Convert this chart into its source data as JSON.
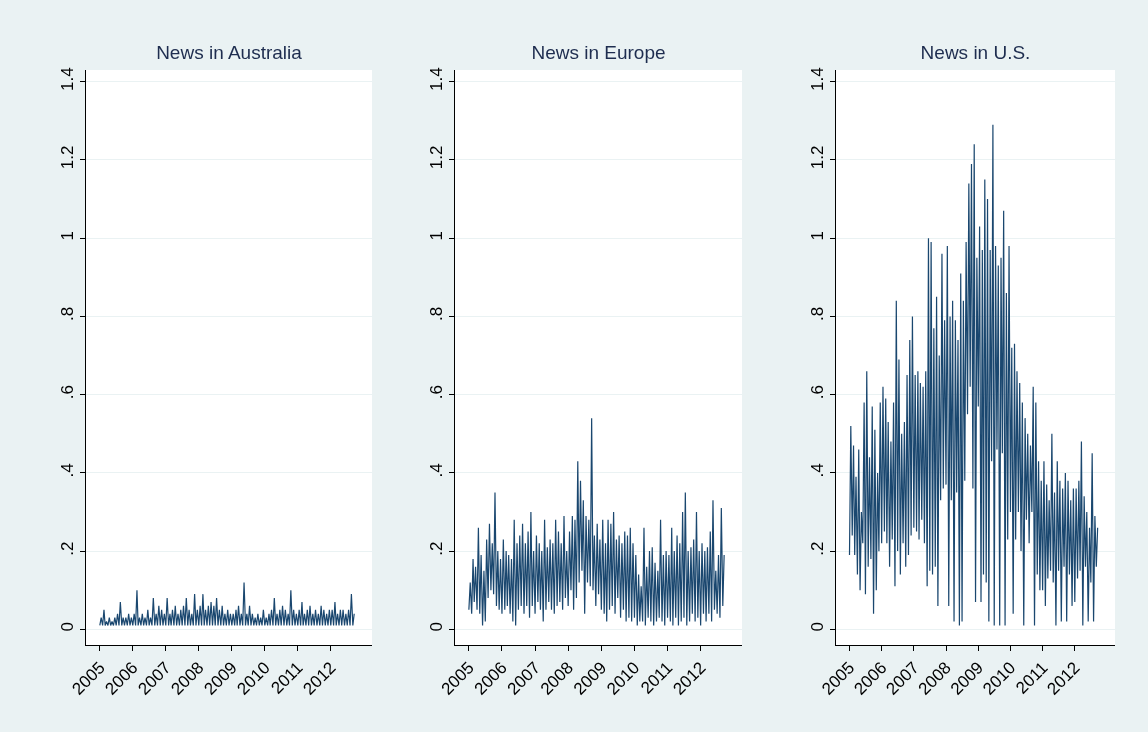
{
  "chart_data": [
    {
      "type": "line",
      "title": "News in Australia",
      "xlim": [
        "2004-08",
        "2013-04"
      ],
      "ylim": [
        -0.04,
        1.43
      ],
      "xticks": [
        "2005",
        "2006",
        "2007",
        "2008",
        "2009",
        "2010",
        "2011",
        "2012"
      ],
      "yticks": [
        0,
        {
          "value": 0.2,
          "label": ".2"
        },
        {
          "value": 0.4,
          "label": ".4"
        },
        {
          "value": 0.6,
          "label": ".6"
        },
        {
          "value": 0.8,
          "label": ".8"
        },
        1,
        1.2,
        1.4
      ],
      "grid": "y",
      "x": [
        "2005-01-01",
        "2005-01-16",
        "2005-02-01",
        "2005-02-16",
        "2005-03-01",
        "2005-03-16",
        "2005-04-01",
        "2005-04-16",
        "2005-05-01",
        "2005-05-16",
        "2005-06-01",
        "2005-06-16",
        "2005-07-01",
        "2005-07-16",
        "2005-08-01",
        "2005-08-16",
        "2005-09-01",
        "2005-09-16",
        "2005-10-01",
        "2005-10-16",
        "2005-11-01",
        "2005-11-16",
        "2005-12-01",
        "2005-12-16",
        "2006-01-01",
        "2006-01-16",
        "2006-02-01",
        "2006-02-16",
        "2006-03-01",
        "2006-03-16",
        "2006-04-01",
        "2006-04-16",
        "2006-05-01",
        "2006-05-16",
        "2006-06-01",
        "2006-06-16",
        "2006-07-01",
        "2006-07-16",
        "2006-08-01",
        "2006-08-16",
        "2006-09-01",
        "2006-09-16",
        "2006-10-01",
        "2006-10-16",
        "2006-11-01",
        "2006-11-16",
        "2006-12-01",
        "2006-12-16",
        "2007-01-01",
        "2007-01-16",
        "2007-02-01",
        "2007-02-16",
        "2007-03-01",
        "2007-03-16",
        "2007-04-01",
        "2007-04-16",
        "2007-05-01",
        "2007-05-16",
        "2007-06-01",
        "2007-06-16",
        "2007-07-01",
        "2007-07-16",
        "2007-08-01",
        "2007-08-16",
        "2007-09-01",
        "2007-09-16",
        "2007-10-01",
        "2007-10-16",
        "2007-11-01",
        "2007-11-16",
        "2007-12-01",
        "2007-12-16",
        "2008-01-01",
        "2008-01-16",
        "2008-02-01",
        "2008-02-16",
        "2008-03-01",
        "2008-03-16",
        "2008-04-01",
        "2008-04-16",
        "2008-05-01",
        "2008-05-16",
        "2008-06-01",
        "2008-06-16",
        "2008-07-01",
        "2008-07-16",
        "2008-08-01",
        "2008-08-16",
        "2008-09-01",
        "2008-09-16",
        "2008-10-01",
        "2008-10-16",
        "2008-11-01",
        "2008-11-16",
        "2008-12-01",
        "2008-12-16",
        "2009-01-01",
        "2009-01-16",
        "2009-02-01",
        "2009-02-16",
        "2009-03-01",
        "2009-03-16",
        "2009-04-01",
        "2009-04-16",
        "2009-05-01",
        "2009-05-16",
        "2009-06-01",
        "2009-06-16",
        "2009-07-01",
        "2009-07-16",
        "2009-08-01",
        "2009-08-16",
        "2009-09-01",
        "2009-09-16",
        "2009-10-01",
        "2009-10-16",
        "2009-11-01",
        "2009-11-16",
        "2009-12-01",
        "2009-12-16",
        "2010-01-01",
        "2010-01-16",
        "2010-02-01",
        "2010-02-16",
        "2010-03-01",
        "2010-03-16",
        "2010-04-01",
        "2010-04-16",
        "2010-05-01",
        "2010-05-16",
        "2010-06-01",
        "2010-06-16",
        "2010-07-01",
        "2010-07-16",
        "2010-08-01",
        "2010-08-16",
        "2010-09-01",
        "2010-09-16",
        "2010-10-01",
        "2010-10-16",
        "2010-11-01",
        "2010-11-16",
        "2010-12-01",
        "2010-12-16",
        "2011-01-01",
        "2011-01-16",
        "2011-02-01",
        "2011-02-16",
        "2011-03-01",
        "2011-03-16",
        "2011-04-01",
        "2011-04-16",
        "2011-05-01",
        "2011-05-16",
        "2011-06-01",
        "2011-06-16",
        "2011-07-01",
        "2011-07-16",
        "2011-08-01",
        "2011-08-16",
        "2011-09-01",
        "2011-09-16",
        "2011-10-01",
        "2011-10-16",
        "2011-11-01",
        "2011-11-16",
        "2011-12-01",
        "2011-12-16",
        "2012-01-01",
        "2012-01-16",
        "2012-02-01",
        "2012-02-16",
        "2012-03-01",
        "2012-03-16",
        "2012-04-01",
        "2012-04-16",
        "2012-05-01",
        "2012-05-16",
        "2012-06-01",
        "2012-06-16",
        "2012-07-01",
        "2012-07-16",
        "2012-08-01",
        "2012-08-16",
        "2012-09-01",
        "2012-09-16"
      ],
      "series": [
        {
          "color": "#1a476f",
          "values": [
            0.01,
            0.03,
            0.01,
            0.05,
            0.01,
            0.02,
            0.01,
            0.03,
            0.01,
            0.02,
            0.01,
            0.03,
            0.01,
            0.04,
            0.01,
            0.07,
            0.01,
            0.03,
            0.01,
            0.03,
            0.01,
            0.04,
            0.01,
            0.03,
            0.01,
            0.04,
            0.01,
            0.1,
            0.01,
            0.03,
            0.01,
            0.04,
            0.01,
            0.03,
            0.01,
            0.05,
            0.01,
            0.03,
            0.01,
            0.08,
            0.01,
            0.04,
            0.01,
            0.06,
            0.01,
            0.05,
            0.01,
            0.04,
            0.01,
            0.08,
            0.01,
            0.04,
            0.01,
            0.05,
            0.01,
            0.06,
            0.01,
            0.04,
            0.01,
            0.05,
            0.01,
            0.06,
            0.01,
            0.08,
            0.01,
            0.05,
            0.01,
            0.04,
            0.01,
            0.09,
            0.01,
            0.05,
            0.01,
            0.06,
            0.01,
            0.09,
            0.01,
            0.05,
            0.01,
            0.06,
            0.01,
            0.07,
            0.01,
            0.06,
            0.01,
            0.08,
            0.01,
            0.05,
            0.01,
            0.06,
            0.01,
            0.04,
            0.01,
            0.05,
            0.01,
            0.04,
            0.01,
            0.04,
            0.01,
            0.05,
            0.01,
            0.06,
            0.01,
            0.04,
            0.01,
            0.12,
            0.01,
            0.04,
            0.01,
            0.06,
            0.01,
            0.04,
            0.01,
            0.03,
            0.01,
            0.04,
            0.01,
            0.03,
            0.01,
            0.05,
            0.01,
            0.03,
            0.01,
            0.04,
            0.01,
            0.05,
            0.01,
            0.08,
            0.01,
            0.04,
            0.01,
            0.05,
            0.01,
            0.06,
            0.01,
            0.05,
            0.01,
            0.04,
            0.01,
            0.1,
            0.01,
            0.05,
            0.01,
            0.04,
            0.01,
            0.05,
            0.01,
            0.07,
            0.01,
            0.04,
            0.01,
            0.05,
            0.01,
            0.06,
            0.01,
            0.04,
            0.01,
            0.05,
            0.01,
            0.04,
            0.01,
            0.06,
            0.01,
            0.05,
            0.01,
            0.04,
            0.01,
            0.05,
            0.01,
            0.05,
            0.01,
            0.07,
            0.01,
            0.04,
            0.01,
            0.05,
            0.01,
            0.05,
            0.01,
            0.04,
            0.01,
            0.05,
            0.01,
            0.09,
            0.01,
            0.04
          ]
        }
      ]
    },
    {
      "type": "line",
      "title": "News in Europe",
      "xlim": [
        "2004-08",
        "2013-04"
      ],
      "ylim": [
        -0.04,
        1.43
      ],
      "xticks": [
        "2005",
        "2006",
        "2007",
        "2008",
        "2009",
        "2010",
        "2011",
        "2012"
      ],
      "yticks": [
        0,
        {
          "value": 0.2,
          "label": ".2"
        },
        {
          "value": 0.4,
          "label": ".4"
        },
        {
          "value": 0.6,
          "label": ".6"
        },
        {
          "value": 0.8,
          "label": ".8"
        },
        1,
        1.2,
        1.4
      ],
      "grid": "y",
      "x": [
        "2005-01-01",
        "2005-01-16",
        "2005-02-01",
        "2005-02-16",
        "2005-03-01",
        "2005-03-16",
        "2005-04-01",
        "2005-04-16",
        "2005-05-01",
        "2005-05-16",
        "2005-06-01",
        "2005-06-16",
        "2005-07-01",
        "2005-07-16",
        "2005-08-01",
        "2005-08-16",
        "2005-09-01",
        "2005-09-16",
        "2005-10-01",
        "2005-10-16",
        "2005-11-01",
        "2005-11-16",
        "2005-12-01",
        "2005-12-16",
        "2006-01-01",
        "2006-01-16",
        "2006-02-01",
        "2006-02-16",
        "2006-03-01",
        "2006-03-16",
        "2006-04-01",
        "2006-04-16",
        "2006-05-01",
        "2006-05-16",
        "2006-06-01",
        "2006-06-16",
        "2006-07-01",
        "2006-07-16",
        "2006-08-01",
        "2006-08-16",
        "2006-09-01",
        "2006-09-16",
        "2006-10-01",
        "2006-10-16",
        "2006-11-01",
        "2006-11-16",
        "2006-12-01",
        "2006-12-16",
        "2007-01-01",
        "2007-01-16",
        "2007-02-01",
        "2007-02-16",
        "2007-03-01",
        "2007-03-16",
        "2007-04-01",
        "2007-04-16",
        "2007-05-01",
        "2007-05-16",
        "2007-06-01",
        "2007-06-16",
        "2007-07-01",
        "2007-07-16",
        "2007-08-01",
        "2007-08-16",
        "2007-09-01",
        "2007-09-16",
        "2007-10-01",
        "2007-10-16",
        "2007-11-01",
        "2007-11-16",
        "2007-12-01",
        "2007-12-16",
        "2008-01-01",
        "2008-01-16",
        "2008-02-01",
        "2008-02-16",
        "2008-03-01",
        "2008-03-16",
        "2008-04-01",
        "2008-04-16",
        "2008-05-01",
        "2008-05-16",
        "2008-06-01",
        "2008-06-16",
        "2008-07-01",
        "2008-07-16",
        "2008-08-01",
        "2008-08-16",
        "2008-09-01",
        "2008-09-16",
        "2008-10-01",
        "2008-10-16",
        "2008-11-01",
        "2008-11-16",
        "2008-12-01",
        "2008-12-16",
        "2009-01-01",
        "2009-01-16",
        "2009-02-01",
        "2009-02-16",
        "2009-03-01",
        "2009-03-16",
        "2009-04-01",
        "2009-04-16",
        "2009-05-01",
        "2009-05-16",
        "2009-06-01",
        "2009-06-16",
        "2009-07-01",
        "2009-07-16",
        "2009-08-01",
        "2009-08-16",
        "2009-09-01",
        "2009-09-16",
        "2009-10-01",
        "2009-10-16",
        "2009-11-01",
        "2009-11-16",
        "2009-12-01",
        "2009-12-16",
        "2010-01-01",
        "2010-01-16",
        "2010-02-01",
        "2010-02-16",
        "2010-03-01",
        "2010-03-16",
        "2010-04-01",
        "2010-04-16",
        "2010-05-01",
        "2010-05-16",
        "2010-06-01",
        "2010-06-16",
        "2010-07-01",
        "2010-07-16",
        "2010-08-01",
        "2010-08-16",
        "2010-09-01",
        "2010-09-16",
        "2010-10-01",
        "2010-10-16",
        "2010-11-01",
        "2010-11-16",
        "2010-12-01",
        "2010-12-16",
        "2011-01-01",
        "2011-01-16",
        "2011-02-01",
        "2011-02-16",
        "2011-03-01",
        "2011-03-16",
        "2011-04-01",
        "2011-04-16",
        "2011-05-01",
        "2011-05-16",
        "2011-06-01",
        "2011-06-16",
        "2011-07-01",
        "2011-07-16",
        "2011-08-01",
        "2011-08-16",
        "2011-09-01",
        "2011-09-16",
        "2011-10-01",
        "2011-10-16",
        "2011-11-01",
        "2011-11-16",
        "2011-12-01",
        "2011-12-16",
        "2012-01-01",
        "2012-01-16",
        "2012-02-01",
        "2012-02-16",
        "2012-03-01",
        "2012-03-16",
        "2012-04-01",
        "2012-04-16",
        "2012-05-01",
        "2012-05-16",
        "2012-06-01",
        "2012-06-16",
        "2012-07-01",
        "2012-07-16",
        "2012-08-01",
        "2012-08-16",
        "2012-09-01",
        "2012-09-16"
      ],
      "series": [
        {
          "color": "#1a476f",
          "values": [
            0.05,
            0.12,
            0.04,
            0.18,
            0.07,
            0.16,
            0.05,
            0.26,
            0.04,
            0.19,
            0.01,
            0.15,
            0.02,
            0.23,
            0.08,
            0.27,
            0.1,
            0.22,
            0.09,
            0.35,
            0.06,
            0.2,
            0.05,
            0.18,
            0.04,
            0.23,
            0.05,
            0.2,
            0.06,
            0.19,
            0.04,
            0.18,
            0.02,
            0.28,
            0.01,
            0.22,
            0.05,
            0.24,
            0.06,
            0.27,
            0.04,
            0.22,
            0.06,
            0.25,
            0.03,
            0.3,
            0.06,
            0.2,
            0.04,
            0.24,
            0.07,
            0.22,
            0.05,
            0.2,
            0.02,
            0.28,
            0.05,
            0.21,
            0.07,
            0.23,
            0.05,
            0.22,
            0.04,
            0.28,
            0.06,
            0.25,
            0.07,
            0.22,
            0.05,
            0.29,
            0.08,
            0.2,
            0.06,
            0.25,
            0.1,
            0.29,
            0.05,
            0.28,
            0.08,
            0.43,
            0.12,
            0.38,
            0.15,
            0.33,
            0.04,
            0.29,
            0.12,
            0.28,
            0.11,
            0.54,
            0.1,
            0.24,
            0.06,
            0.27,
            0.09,
            0.23,
            0.05,
            0.28,
            0.04,
            0.22,
            0.02,
            0.28,
            0.05,
            0.27,
            0.06,
            0.3,
            0.04,
            0.23,
            0.08,
            0.24,
            0.03,
            0.22,
            0.05,
            0.25,
            0.02,
            0.24,
            0.03,
            0.26,
            0.02,
            0.22,
            0.03,
            0.19,
            0.01,
            0.14,
            0.02,
            0.11,
            0.02,
            0.26,
            0.01,
            0.16,
            0.03,
            0.2,
            0.02,
            0.21,
            0.01,
            0.17,
            0.02,
            0.15,
            0.03,
            0.28,
            0.02,
            0.19,
            0.01,
            0.2,
            0.03,
            0.19,
            0.02,
            0.26,
            0.01,
            0.2,
            0.03,
            0.24,
            0.01,
            0.22,
            0.02,
            0.3,
            0.03,
            0.35,
            0.01,
            0.2,
            0.02,
            0.21,
            0.04,
            0.23,
            0.02,
            0.3,
            0.03,
            0.2,
            0.01,
            0.22,
            0.04,
            0.2,
            0.02,
            0.21,
            0.04,
            0.25,
            0.02,
            0.33,
            0.05,
            0.15,
            0.04,
            0.19,
            0.03,
            0.31,
            0.06,
            0.19
          ]
        }
      ]
    },
    {
      "type": "line",
      "title": "News in U.S.",
      "xlim": [
        "2004-08",
        "2013-04"
      ],
      "ylim": [
        -0.04,
        1.43
      ],
      "xticks": [
        "2005",
        "2006",
        "2007",
        "2008",
        "2009",
        "2010",
        "2011",
        "2012"
      ],
      "yticks": [
        0,
        {
          "value": 0.2,
          "label": ".2"
        },
        {
          "value": 0.4,
          "label": ".4"
        },
        {
          "value": 0.6,
          "label": ".6"
        },
        {
          "value": 0.8,
          "label": ".8"
        },
        1,
        1.2,
        1.4
      ],
      "grid": "y",
      "x": [
        "2005-01-01",
        "2005-01-16",
        "2005-02-01",
        "2005-02-16",
        "2005-03-01",
        "2005-03-16",
        "2005-04-01",
        "2005-04-16",
        "2005-05-01",
        "2005-05-16",
        "2005-06-01",
        "2005-06-16",
        "2005-07-01",
        "2005-07-16",
        "2005-08-01",
        "2005-08-16",
        "2005-09-01",
        "2005-09-16",
        "2005-10-01",
        "2005-10-16",
        "2005-11-01",
        "2005-11-16",
        "2005-12-01",
        "2005-12-16",
        "2006-01-01",
        "2006-01-16",
        "2006-02-01",
        "2006-02-16",
        "2006-03-01",
        "2006-03-16",
        "2006-04-01",
        "2006-04-16",
        "2006-05-01",
        "2006-05-16",
        "2006-06-01",
        "2006-06-16",
        "2006-07-01",
        "2006-07-16",
        "2006-08-01",
        "2006-08-16",
        "2006-09-01",
        "2006-09-16",
        "2006-10-01",
        "2006-10-16",
        "2006-11-01",
        "2006-11-16",
        "2006-12-01",
        "2006-12-16",
        "2007-01-01",
        "2007-01-16",
        "2007-02-01",
        "2007-02-16",
        "2007-03-01",
        "2007-03-16",
        "2007-04-01",
        "2007-04-16",
        "2007-05-01",
        "2007-05-16",
        "2007-06-01",
        "2007-06-16",
        "2007-07-01",
        "2007-07-16",
        "2007-08-01",
        "2007-08-16",
        "2007-09-01",
        "2007-09-16",
        "2007-10-01",
        "2007-10-16",
        "2007-11-01",
        "2007-11-16",
        "2007-12-01",
        "2007-12-16",
        "2008-01-01",
        "2008-01-16",
        "2008-02-01",
        "2008-02-16",
        "2008-03-01",
        "2008-03-16",
        "2008-04-01",
        "2008-04-16",
        "2008-05-01",
        "2008-05-16",
        "2008-06-01",
        "2008-06-16",
        "2008-07-01",
        "2008-07-16",
        "2008-08-01",
        "2008-08-16",
        "2008-09-01",
        "2008-09-16",
        "2008-10-01",
        "2008-10-16",
        "2008-11-01",
        "2008-11-16",
        "2008-12-01",
        "2008-12-16",
        "2009-01-01",
        "2009-01-16",
        "2009-02-01",
        "2009-02-16",
        "2009-03-01",
        "2009-03-16",
        "2009-04-01",
        "2009-04-16",
        "2009-05-01",
        "2009-05-16",
        "2009-06-01",
        "2009-06-16",
        "2009-07-01",
        "2009-07-16",
        "2009-08-01",
        "2009-08-16",
        "2009-09-01",
        "2009-09-16",
        "2009-10-01",
        "2009-10-16",
        "2009-11-01",
        "2009-11-16",
        "2009-12-01",
        "2009-12-16",
        "2010-01-01",
        "2010-01-16",
        "2010-02-01",
        "2010-02-16",
        "2010-03-01",
        "2010-03-16",
        "2010-04-01",
        "2010-04-16",
        "2010-05-01",
        "2010-05-16",
        "2010-06-01",
        "2010-06-16",
        "2010-07-01",
        "2010-07-16",
        "2010-08-01",
        "2010-08-16",
        "2010-09-01",
        "2010-09-16",
        "2010-10-01",
        "2010-10-16",
        "2010-11-01",
        "2010-11-16",
        "2010-12-01",
        "2010-12-16",
        "2011-01-01",
        "2011-01-16",
        "2011-02-01",
        "2011-02-16",
        "2011-03-01",
        "2011-03-16",
        "2011-04-01",
        "2011-04-16",
        "2011-05-01",
        "2011-05-16",
        "2011-06-01",
        "2011-06-16",
        "2011-07-01",
        "2011-07-16",
        "2011-08-01",
        "2011-08-16",
        "2011-09-01",
        "2011-09-16",
        "2011-10-01",
        "2011-10-16",
        "2011-11-01",
        "2011-11-16",
        "2011-12-01",
        "2011-12-16",
        "2012-01-01",
        "2012-01-16",
        "2012-02-01",
        "2012-02-16",
        "2012-03-01",
        "2012-03-16",
        "2012-04-01",
        "2012-04-16",
        "2012-05-01",
        "2012-05-16",
        "2012-06-01",
        "2012-06-16",
        "2012-07-01",
        "2012-07-16",
        "2012-08-01",
        "2012-08-16",
        "2012-09-01",
        "2012-09-16"
      ],
      "series": [
        {
          "color": "#1a476f",
          "values": [
            0.19,
            0.52,
            0.24,
            0.47,
            0.19,
            0.39,
            0.14,
            0.46,
            0.1,
            0.3,
            0.22,
            0.58,
            0.09,
            0.66,
            0.16,
            0.44,
            0.18,
            0.57,
            0.04,
            0.51,
            0.1,
            0.4,
            0.2,
            0.58,
            0.22,
            0.62,
            0.25,
            0.59,
            0.22,
            0.53,
            0.16,
            0.48,
            0.23,
            0.58,
            0.11,
            0.84,
            0.2,
            0.69,
            0.14,
            0.5,
            0.22,
            0.53,
            0.16,
            0.65,
            0.19,
            0.74,
            0.24,
            0.8,
            0.26,
            0.65,
            0.25,
            0.66,
            0.23,
            0.63,
            0.28,
            0.62,
            0.22,
            0.66,
            0.11,
            1.0,
            0.15,
            0.99,
            0.14,
            0.77,
            0.16,
            0.85,
            0.06,
            0.7,
            0.33,
            0.96,
            0.36,
            0.79,
            0.37,
            0.98,
            0.06,
            0.8,
            0.33,
            0.84,
            0.02,
            0.79,
            0.35,
            0.74,
            0.01,
            0.91,
            0.02,
            0.84,
            0.38,
            0.99,
            0.55,
            1.14,
            0.62,
            1.19,
            0.36,
            1.24,
            0.07,
            0.95,
            0.57,
            1.03,
            0.07,
            0.97,
            0.14,
            1.15,
            0.12,
            1.1,
            0.02,
            0.97,
            0.43,
            1.29,
            0.01,
            0.98,
            0.46,
            0.93,
            0.01,
            0.95,
            0.45,
            1.07,
            0.01,
            0.86,
            0.23,
            0.98,
            0.3,
            0.72,
            0.04,
            0.73,
            0.23,
            0.66,
            0.3,
            0.63,
            0.2,
            0.58,
            0.01,
            0.54,
            0.28,
            0.5,
            0.22,
            0.47,
            0.3,
            0.62,
            0.01,
            0.58,
            0.14,
            0.43,
            0.1,
            0.38,
            0.1,
            0.43,
            0.06,
            0.37,
            0.13,
            0.33,
            0.15,
            0.5,
            0.12,
            0.35,
            0.01,
            0.43,
            0.15,
            0.38,
            0.02,
            0.36,
            0.16,
            0.4,
            0.02,
            0.38,
            0.14,
            0.33,
            0.06,
            0.36,
            0.07,
            0.36,
            0.13,
            0.38,
            0.15,
            0.48,
            0.01,
            0.34,
            0.16,
            0.3,
            0.02,
            0.26,
            0.12,
            0.45,
            0.02,
            0.29,
            0.16,
            0.26
          ]
        }
      ]
    }
  ]
}
